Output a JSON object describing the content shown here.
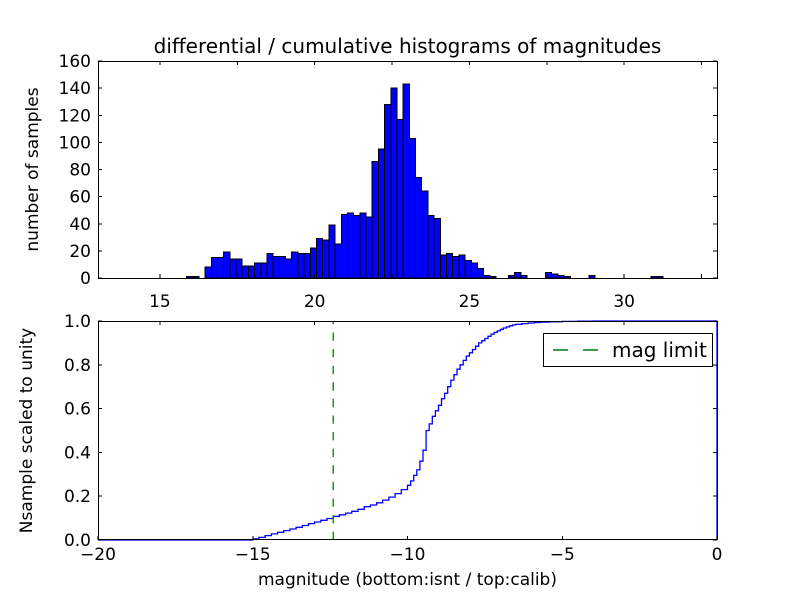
{
  "figure": {
    "title": "differential / cumulative histograms of magnitudes",
    "background": "#ffffff",
    "text_color": "#000000",
    "frame_color": "#000000"
  },
  "chart_data": [
    {
      "type": "bar",
      "role": "differential-histogram",
      "ylabel": "number of samples",
      "xlim": [
        13,
        33
      ],
      "ylim": [
        0,
        160
      ],
      "xticks": {
        "values": [
          15,
          17.5,
          20,
          22.5,
          25,
          27.5,
          30,
          32.5
        ],
        "labels": [
          "15",
          "",
          "20",
          "",
          "25",
          "",
          "30",
          ""
        ]
      },
      "yticks": {
        "values": [
          0,
          20,
          40,
          60,
          80,
          100,
          120,
          140,
          160
        ],
        "labels": [
          "0",
          "20",
          "40",
          "60",
          "80",
          "100",
          "120",
          "140",
          "160"
        ]
      },
      "bar_color": "#0000ff",
      "bar_edge_color": "#000000",
      "bin_width": 0.2,
      "bars": [
        [
          15.86,
          1
        ],
        [
          16.06,
          1
        ],
        [
          16.46,
          8
        ],
        [
          16.66,
          15
        ],
        [
          16.86,
          15
        ],
        [
          17.06,
          19
        ],
        [
          17.26,
          14
        ],
        [
          17.46,
          14
        ],
        [
          17.66,
          9
        ],
        [
          17.86,
          9
        ],
        [
          18.06,
          11
        ],
        [
          18.26,
          11
        ],
        [
          18.46,
          18
        ],
        [
          18.66,
          16
        ],
        [
          18.86,
          16
        ],
        [
          19.06,
          14
        ],
        [
          19.26,
          19
        ],
        [
          19.46,
          18
        ],
        [
          19.66,
          18
        ],
        [
          19.86,
          22
        ],
        [
          20.06,
          29
        ],
        [
          20.26,
          28
        ],
        [
          20.46,
          39
        ],
        [
          20.66,
          25
        ],
        [
          20.86,
          47
        ],
        [
          21.06,
          48
        ],
        [
          21.26,
          46
        ],
        [
          21.46,
          48
        ],
        [
          21.66,
          45
        ],
        [
          21.86,
          86
        ],
        [
          22.06,
          95
        ],
        [
          22.26,
          128
        ],
        [
          22.46,
          140
        ],
        [
          22.66,
          117
        ],
        [
          22.86,
          143
        ],
        [
          23.06,
          103
        ],
        [
          23.26,
          74
        ],
        [
          23.46,
          64
        ],
        [
          23.66,
          46
        ],
        [
          23.86,
          44
        ],
        [
          24.06,
          17
        ],
        [
          24.26,
          18
        ],
        [
          24.46,
          16
        ],
        [
          24.66,
          17
        ],
        [
          24.86,
          13
        ],
        [
          25.06,
          11
        ],
        [
          25.26,
          7
        ],
        [
          25.46,
          2
        ],
        [
          25.66,
          1
        ],
        [
          26.26,
          2
        ],
        [
          26.46,
          4
        ],
        [
          26.66,
          2
        ],
        [
          27.46,
          4
        ],
        [
          27.66,
          3
        ],
        [
          27.86,
          2
        ],
        [
          28.06,
          1
        ],
        [
          28.86,
          2
        ],
        [
          30.86,
          1
        ],
        [
          31.06,
          1
        ]
      ]
    },
    {
      "type": "line",
      "role": "cumulative-histogram",
      "xlabel": "magnitude (bottom:isnt / top:calib)",
      "ylabel": "Nsample scaled to unity",
      "xlim": [
        -20,
        0
      ],
      "ylim": [
        0,
        1
      ],
      "xticks": {
        "values": [
          -20,
          -15,
          -10,
          -5,
          0
        ],
        "labels": [
          "−20",
          "−15",
          "−10",
          "−5",
          "0"
        ]
      },
      "yticks": {
        "values": [
          0,
          0.2,
          0.4,
          0.6,
          0.8,
          1.0
        ],
        "labels": [
          "0.0",
          "0.2",
          "0.4",
          "0.6",
          "0.8",
          "1.0"
        ]
      },
      "top_axis_tick_values": [
        15,
        20,
        25,
        30
      ],
      "line_color": "#0000ff",
      "step_points": [
        [
          -20,
          0
        ],
        [
          -15.0,
          0.005
        ],
        [
          -14.8,
          0.012
        ],
        [
          -14.6,
          0.02
        ],
        [
          -14.4,
          0.028
        ],
        [
          -14.2,
          0.035
        ],
        [
          -14.0,
          0.043
        ],
        [
          -13.8,
          0.05
        ],
        [
          -13.6,
          0.058
        ],
        [
          -13.4,
          0.066
        ],
        [
          -13.2,
          0.075
        ],
        [
          -13.0,
          0.082
        ],
        [
          -12.8,
          0.09
        ],
        [
          -12.6,
          0.098
        ],
        [
          -12.4,
          0.108
        ],
        [
          -12.2,
          0.115
        ],
        [
          -12.0,
          0.123
        ],
        [
          -11.8,
          0.131
        ],
        [
          -11.6,
          0.14
        ],
        [
          -11.4,
          0.152
        ],
        [
          -11.2,
          0.16
        ],
        [
          -11.0,
          0.17
        ],
        [
          -10.8,
          0.182
        ],
        [
          -10.6,
          0.196
        ],
        [
          -10.4,
          0.212
        ],
        [
          -10.2,
          0.23
        ],
        [
          -10.0,
          0.25
        ],
        [
          -9.9,
          0.27
        ],
        [
          -9.8,
          0.295
        ],
        [
          -9.7,
          0.32
        ],
        [
          -9.6,
          0.36
        ],
        [
          -9.5,
          0.41
        ],
        [
          -9.4,
          0.5
        ],
        [
          -9.3,
          0.53
        ],
        [
          -9.2,
          0.565
        ],
        [
          -9.1,
          0.59
        ],
        [
          -9.0,
          0.615
        ],
        [
          -8.9,
          0.645
        ],
        [
          -8.8,
          0.67
        ],
        [
          -8.7,
          0.7
        ],
        [
          -8.6,
          0.73
        ],
        [
          -8.5,
          0.755
        ],
        [
          -8.4,
          0.78
        ],
        [
          -8.3,
          0.8
        ],
        [
          -8.2,
          0.82
        ],
        [
          -8.1,
          0.84
        ],
        [
          -8.0,
          0.855
        ],
        [
          -7.9,
          0.87
        ],
        [
          -7.8,
          0.885
        ],
        [
          -7.7,
          0.9
        ],
        [
          -7.6,
          0.91
        ],
        [
          -7.5,
          0.92
        ],
        [
          -7.4,
          0.93
        ],
        [
          -7.3,
          0.94
        ],
        [
          -7.2,
          0.948
        ],
        [
          -7.1,
          0.955
        ],
        [
          -7.0,
          0.962
        ],
        [
          -6.9,
          0.968
        ],
        [
          -6.8,
          0.973
        ],
        [
          -6.7,
          0.978
        ],
        [
          -6.6,
          0.982
        ],
        [
          -6.5,
          0.985
        ],
        [
          -6.3,
          0.988
        ],
        [
          -6.1,
          0.991
        ],
        [
          -5.9,
          0.993
        ],
        [
          -5.7,
          0.995
        ],
        [
          -5.4,
          0.997
        ],
        [
          -5.0,
          0.998
        ],
        [
          -4.5,
          0.999
        ],
        [
          -4.0,
          1.0
        ],
        [
          0,
          1.0
        ]
      ],
      "mag_limit": {
        "x": -12.4,
        "color": "#008000",
        "dash": "8.3,8.3"
      },
      "legend": {
        "label": "mag limit",
        "position": "upper-right"
      }
    }
  ]
}
